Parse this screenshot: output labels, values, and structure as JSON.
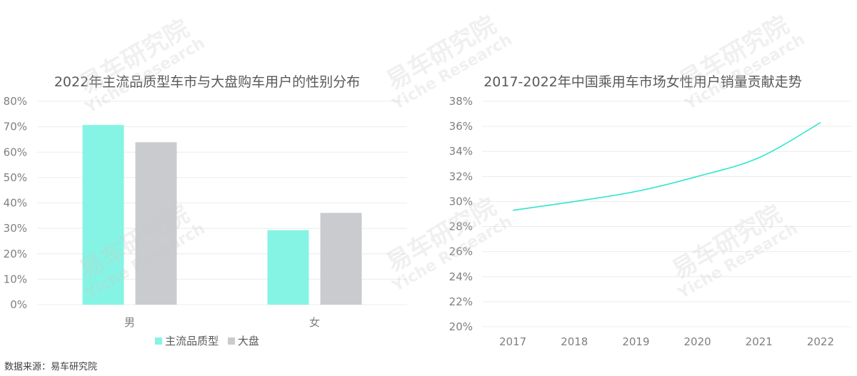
{
  "source_note": "数据来源：易车研究院",
  "watermark": {
    "cn": "易车研究院",
    "en": "Yiche Research"
  },
  "colors": {
    "primary": "#86f4e4",
    "secondary": "#c9cbce",
    "line": "#2fe6cc",
    "grid": "#ececec"
  },
  "chart_data": [
    {
      "type": "bar",
      "title": "2022年主流品质型车市与大盘购车用户的性别分布",
      "categories": [
        "男",
        "女"
      ],
      "series": [
        {
          "name": "主流品质型",
          "values": [
            70.7,
            29.3
          ]
        },
        {
          "name": "大盘",
          "values": [
            63.9,
            36.1
          ]
        }
      ],
      "ylim": [
        0,
        80
      ],
      "yticks": [
        "0%",
        "10%",
        "20%",
        "30%",
        "40%",
        "50%",
        "60%",
        "70%",
        "80%"
      ],
      "legend": "bottom",
      "grid": true
    },
    {
      "type": "line",
      "title": "2017-2022年中国乘用车市场女性用户销量贡献走势",
      "x": [
        "2017",
        "2018",
        "2019",
        "2020",
        "2021",
        "2022"
      ],
      "values": [
        29.3,
        30.0,
        30.8,
        32.0,
        33.5,
        36.3
      ],
      "ylim": [
        20,
        38
      ],
      "yticks": [
        "20%",
        "22%",
        "24%",
        "26%",
        "28%",
        "30%",
        "32%",
        "34%",
        "36%",
        "38%"
      ],
      "grid": true
    }
  ]
}
